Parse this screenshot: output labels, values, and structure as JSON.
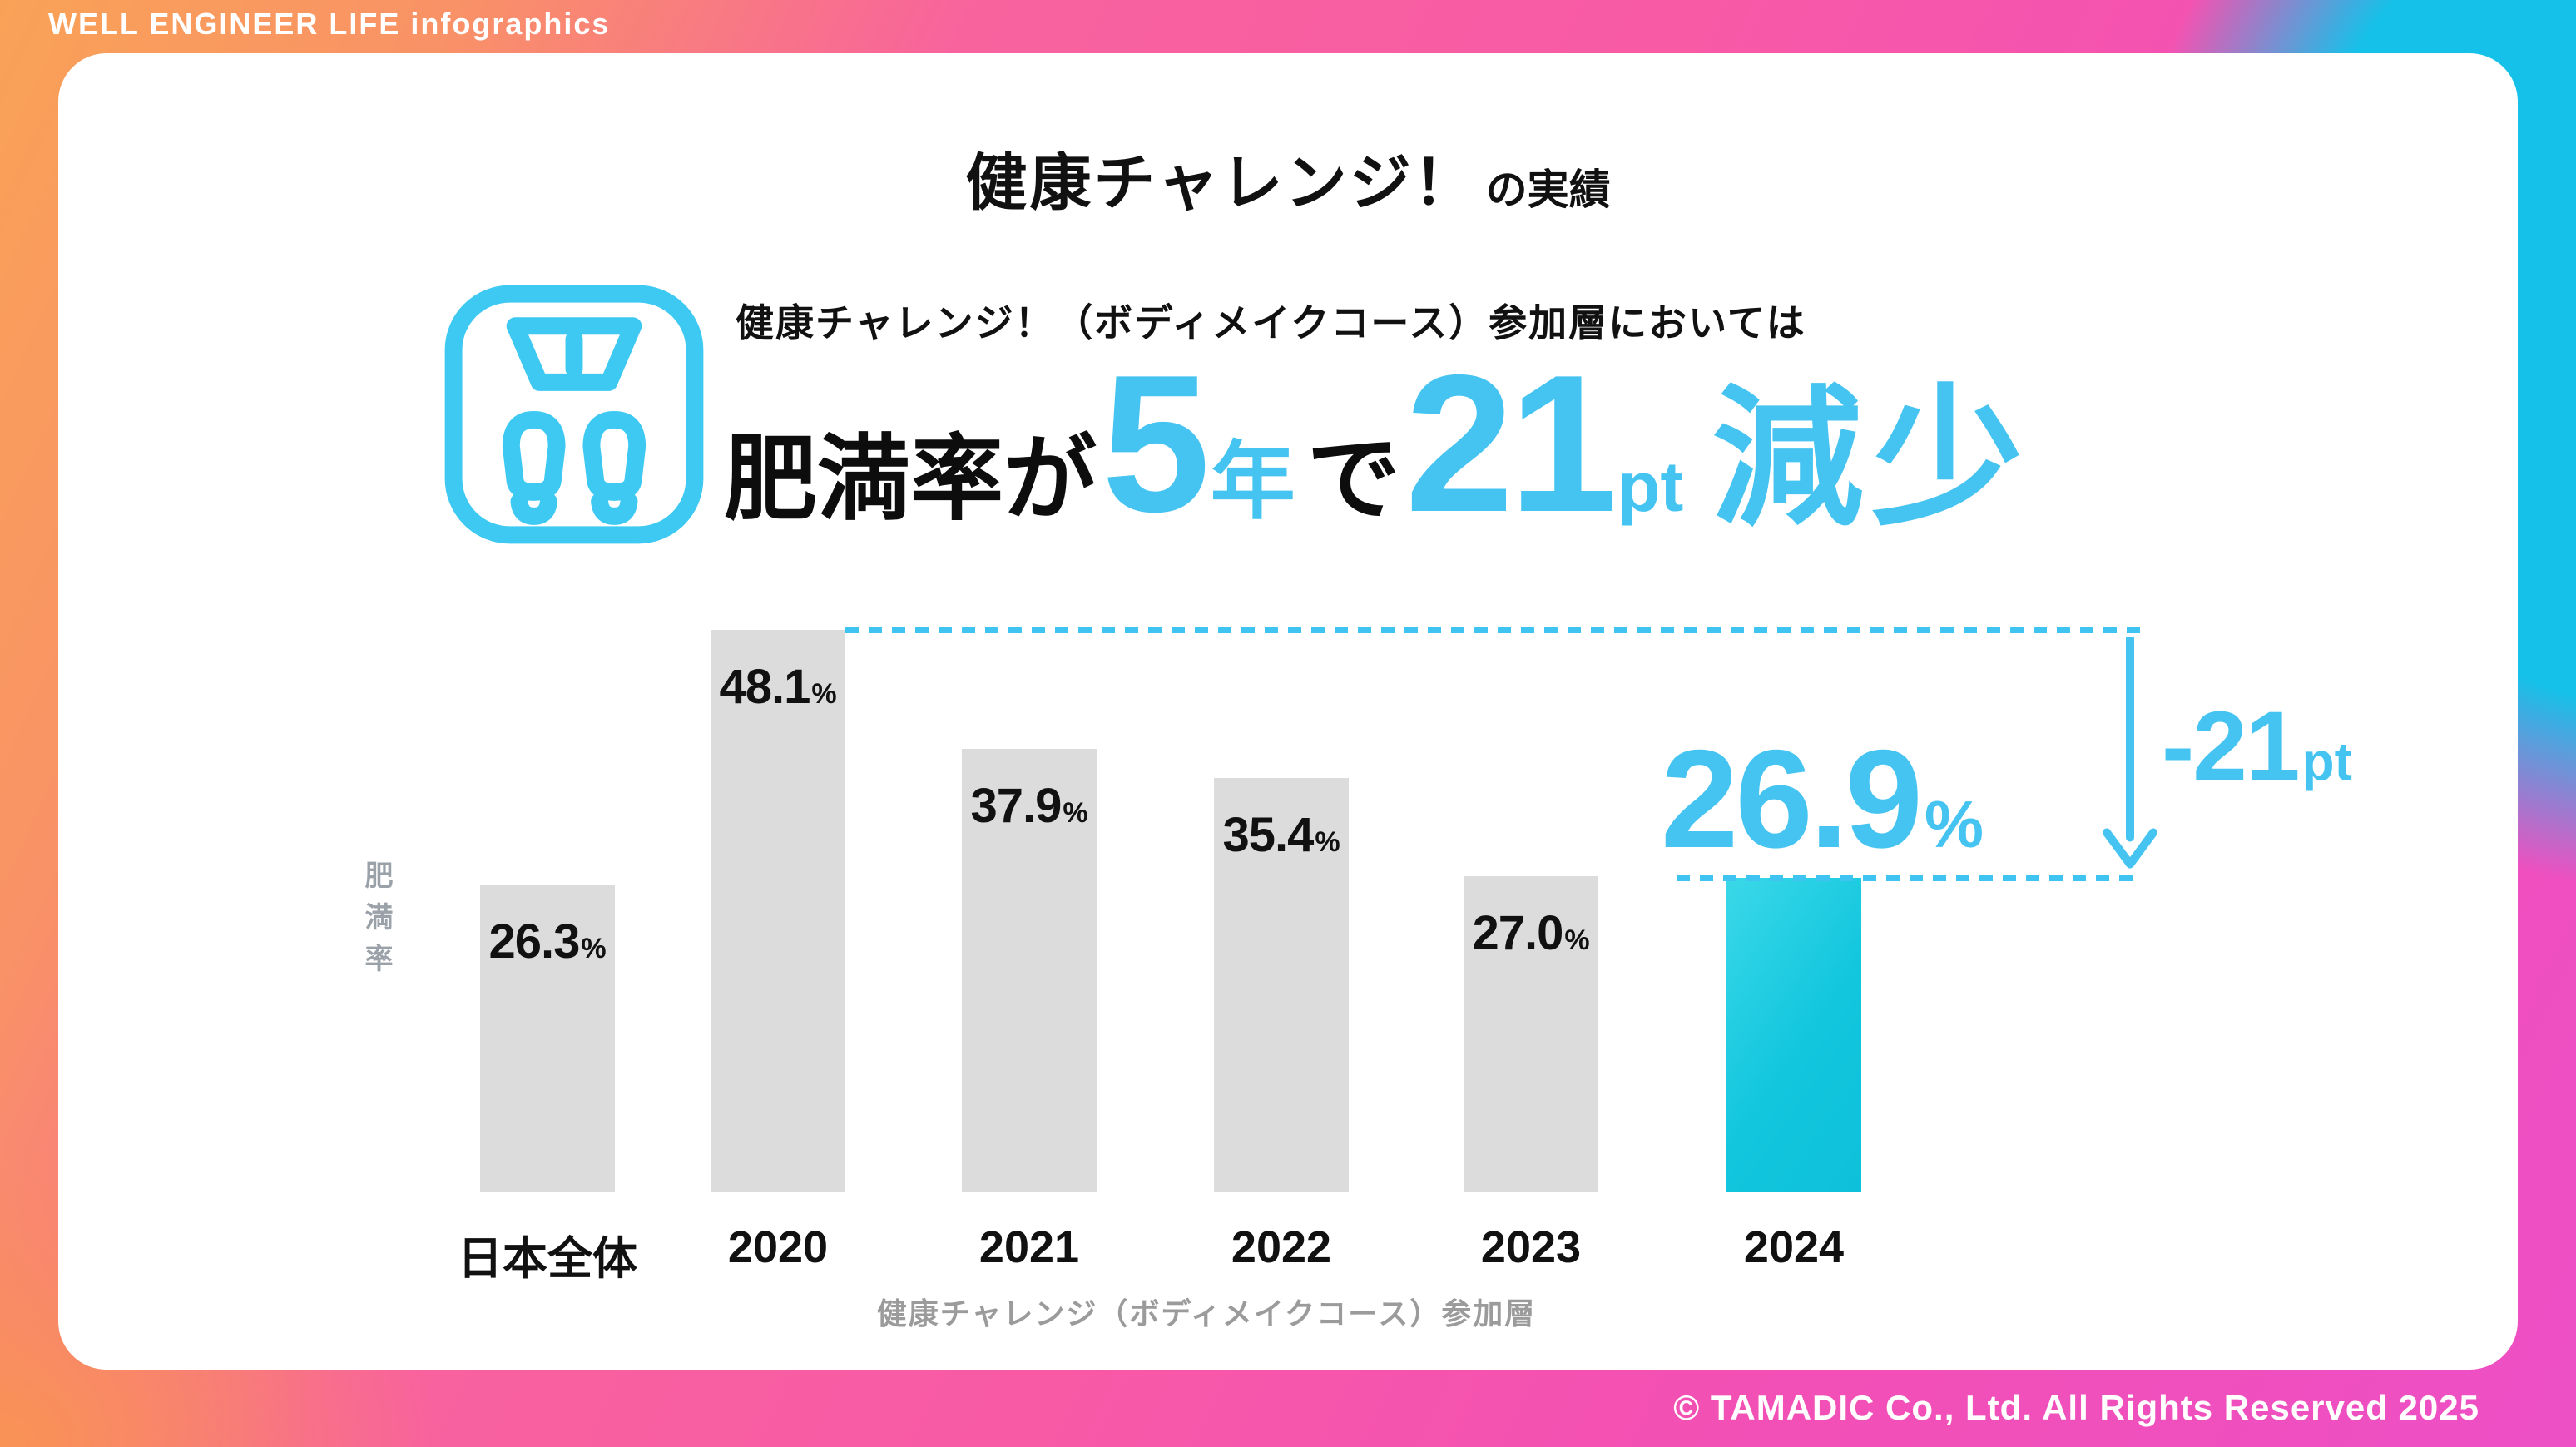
{
  "header": {
    "brand": "WELL ENGINEER LIFE infographics"
  },
  "footer": {
    "copyright": "© TAMADIC Co., Ltd. All Rights Reserved 2025"
  },
  "title": {
    "main": "健康チャレンジ！",
    "suffix": "の実績"
  },
  "subtitle": "健康チャレンジ！（ボディメイクコース）参加層においては",
  "headline": {
    "lead": "肥満率が",
    "years_value": "5",
    "years_unit": "年",
    "connector": "で",
    "points_value": "21",
    "points_unit": "pt",
    "result": "減少"
  },
  "hero_icon": "weight-scale-icon",
  "colors": {
    "accent_cyan": "#45c4f1",
    "dash_cyan": "#3fc3f0",
    "bar_gray": "#dcdcdc",
    "highlight_bar_top": "#3ad8e8",
    "highlight_bar_bottom": "#0fc0da",
    "text_black": "#111111",
    "text_gray": "#9b9b9b",
    "bg_orange": "#f9a257",
    "bg_pink": "#f85aa6",
    "bg_magenta": "#ed4fc5",
    "bg_cyan": "#16c1e9"
  },
  "chart_data": {
    "type": "bar",
    "categories": [
      "日本全体",
      "2020",
      "2021",
      "2022",
      "2023",
      "2024"
    ],
    "values": [
      26.3,
      48.1,
      37.9,
      35.4,
      27.0,
      26.9
    ],
    "value_labels": [
      "26.3",
      "48.1",
      "37.9",
      "35.4",
      "27.0",
      "26.9"
    ],
    "unit": "%",
    "ylabel": "肥満率",
    "xlabel": "健康チャレンジ（ボディメイクコース）参加層",
    "ylim": [
      0,
      50
    ],
    "grid": false,
    "legend": "none",
    "highlight_index": 5,
    "highlight_label": "26.9",
    "annotation": {
      "delta": "-21",
      "unit": "pt"
    }
  }
}
